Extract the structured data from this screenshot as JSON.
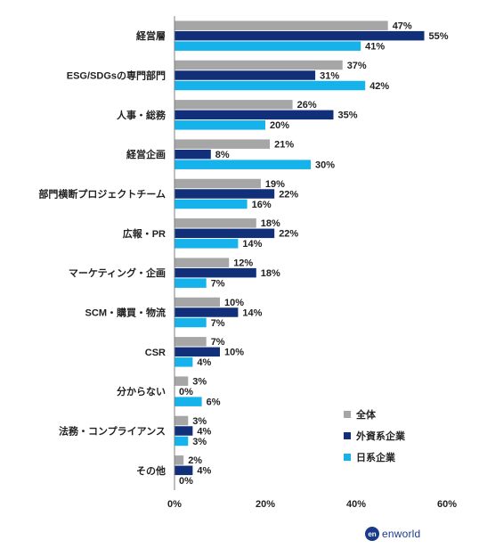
{
  "chart_data": {
    "type": "bar",
    "orientation": "horizontal",
    "categories": [
      "経営層",
      "ESG/SDGsの専門部門",
      "人事・総務",
      "経営企画",
      "部門横断プロジェクトチーム",
      "広報・PR",
      "マーケティング・企画",
      "SCM・購買・物流",
      "CSR",
      "分からない",
      "法務・コンプライアンス",
      "その他"
    ],
    "series": [
      {
        "name": "全体",
        "color": "#a6a6a6",
        "values": [
          47,
          37,
          26,
          21,
          19,
          18,
          12,
          10,
          7,
          3,
          3,
          2
        ]
      },
      {
        "name": "外資系企業",
        "color": "#12307a",
        "values": [
          55,
          31,
          35,
          8,
          22,
          22,
          18,
          14,
          10,
          0,
          4,
          4
        ]
      },
      {
        "name": "日系企業",
        "color": "#16b2ec",
        "values": [
          41,
          42,
          20,
          30,
          16,
          14,
          7,
          7,
          4,
          6,
          3,
          0
        ]
      }
    ],
    "value_suffix": "%",
    "xlim": [
      0,
      60
    ],
    "xticks": [
      "0%",
      "20%",
      "40%",
      "60%"
    ],
    "xtick_values": [
      0,
      20,
      40,
      60
    ],
    "grid": false,
    "legend_position": "bottom-right"
  },
  "logo": {
    "mark": "en",
    "text": "enworld"
  }
}
